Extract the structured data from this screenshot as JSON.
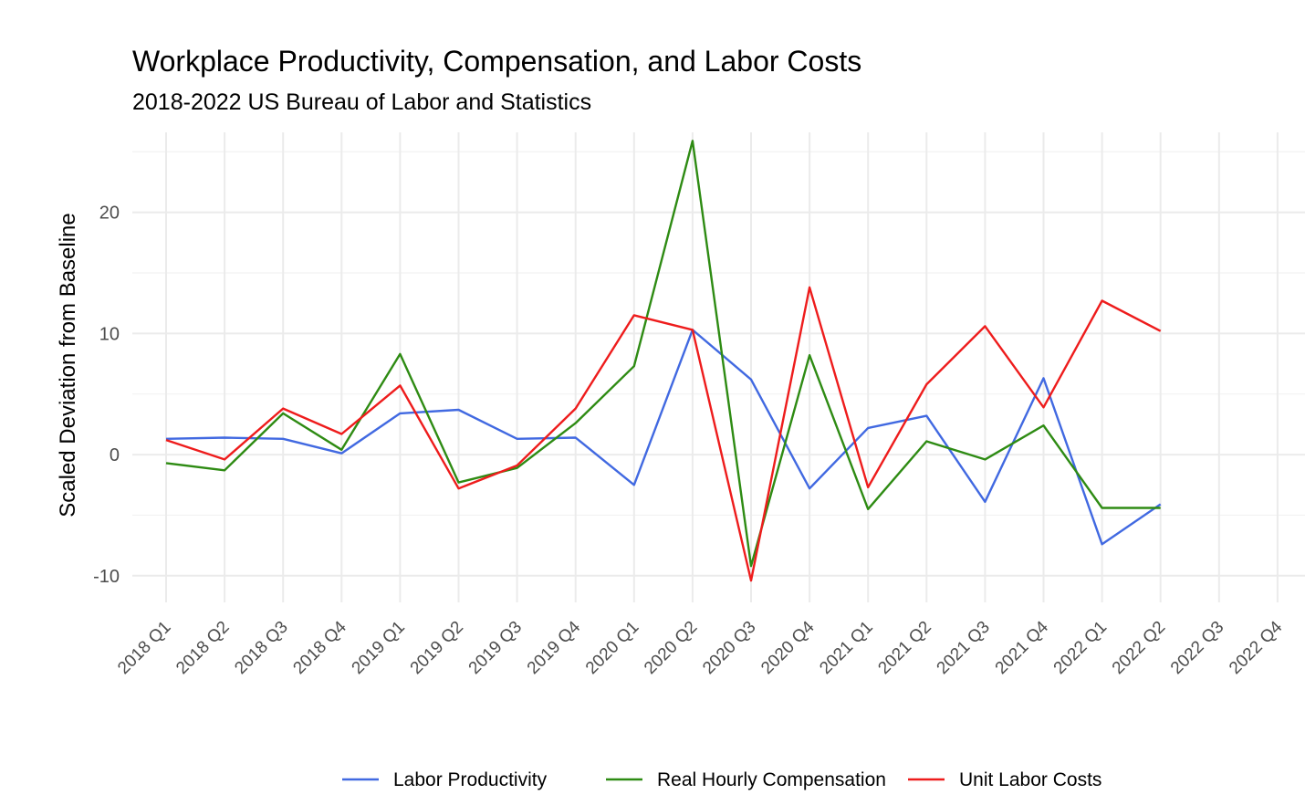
{
  "chart_data": {
    "type": "line",
    "title": "Workplace Productivity, Compensation, and Labor Costs",
    "subtitle": "2018-2022 US Bureau of Labor and Statistics",
    "xlabel": "",
    "ylabel": "Scaled Deviation from Baseline",
    "categories": [
      "2018 Q1",
      "2018 Q2",
      "2018 Q3",
      "2018 Q4",
      "2019 Q1",
      "2019 Q2",
      "2019 Q3",
      "2019 Q4",
      "2020 Q1",
      "2020 Q2",
      "2020 Q3",
      "2020 Q4",
      "2021 Q1",
      "2021 Q2",
      "2021 Q3",
      "2021 Q4",
      "2022 Q1",
      "2022 Q2",
      "2022 Q3",
      "2022 Q4"
    ],
    "ylim": [
      -12.2,
      26.6
    ],
    "yticks": [
      -10,
      0,
      10,
      20
    ],
    "ytick_labels": [
      "-10",
      "0",
      "10",
      "20"
    ],
    "grid": true,
    "legend_position": "bottom",
    "series": [
      {
        "name": "Labor Productivity",
        "color": "#4169e1",
        "values": [
          1.3,
          1.4,
          1.3,
          0.1,
          3.4,
          3.7,
          1.3,
          1.4,
          -2.5,
          10.3,
          6.2,
          -2.8,
          2.2,
          3.2,
          -3.9,
          6.3,
          -7.4,
          -4.1,
          null,
          null
        ]
      },
      {
        "name": "Real Hourly Compensation",
        "color": "#2e8b13",
        "values": [
          -0.7,
          -1.3,
          3.4,
          0.4,
          8.3,
          -2.3,
          -1.1,
          2.6,
          7.3,
          25.9,
          -9.2,
          8.2,
          -4.5,
          1.1,
          -0.4,
          2.4,
          -4.4,
          -4.4,
          null,
          null
        ]
      },
      {
        "name": "Unit Labor Costs",
        "color": "#ee1c1c",
        "values": [
          1.2,
          -0.4,
          3.8,
          1.7,
          5.7,
          -2.8,
          -0.9,
          3.8,
          11.5,
          10.3,
          -10.4,
          13.8,
          -2.7,
          5.8,
          10.6,
          3.9,
          12.7,
          10.2,
          null,
          null
        ]
      }
    ]
  }
}
